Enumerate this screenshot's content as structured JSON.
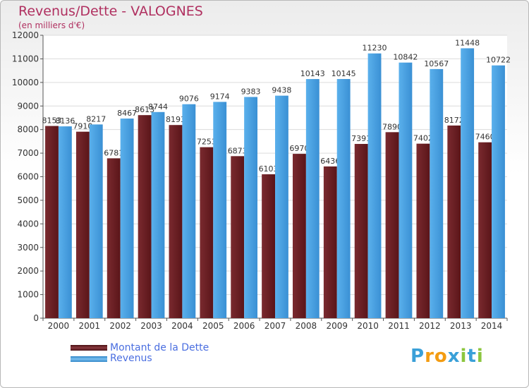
{
  "header": {
    "title": "Revenus/Dette - VALOGNES",
    "subtitle": "(en milliers d'€)"
  },
  "legend": {
    "dette_label": "Montant de la Dette",
    "revenus_label": "Revenus"
  },
  "logo": {
    "text": "Proxiti",
    "letters": [
      "P",
      "r",
      "o",
      "x",
      "i",
      "t",
      "i"
    ],
    "colors": [
      "#3aa0d8",
      "#f39c12",
      "#f39c12",
      "#3aa0d8",
      "#8cc63f",
      "#3aa0d8",
      "#8cc63f"
    ]
  },
  "colors": {
    "dette": "#6a1f24",
    "revenus": "#4aa0e0",
    "title": "#b03060",
    "legend_text": "#4a6ee0"
  },
  "chart_data": {
    "type": "bar",
    "title": "Revenus/Dette - VALOGNES",
    "subtitle": "(en milliers d'€)",
    "categories": [
      "2000",
      "2001",
      "2002",
      "2003",
      "2004",
      "2005",
      "2006",
      "2007",
      "2008",
      "2009",
      "2010",
      "2011",
      "2012",
      "2013",
      "2014"
    ],
    "series": [
      {
        "name": "Montant de la Dette",
        "values": [
          8153,
          7910,
          6781,
          8613,
          8193,
          7253,
          6873,
          6103,
          6970,
          6436,
          7391,
          7890,
          7402,
          8172,
          7460
        ],
        "labels": [
          "8153",
          "7910",
          "6781",
          "8613",
          "8193",
          "7253",
          "6873",
          "6103",
          "6970",
          "6436",
          "7391",
          "7890",
          "7402",
          "8172",
          "7460"
        ]
      },
      {
        "name": "Revenus",
        "values": [
          8136,
          8217,
          8467,
          8744,
          9076,
          9174,
          9383,
          9438,
          10143,
          10145,
          11230,
          10842,
          10567,
          11448,
          10722
        ],
        "labels": [
          "8136",
          "8217",
          "8467",
          "8744",
          "9076",
          "9174",
          "9383",
          "9438",
          "10143",
          "10145",
          "11230",
          "10842",
          "10567",
          "11448",
          "10722"
        ]
      }
    ],
    "ylim": [
      0,
      12000
    ],
    "yticks": [
      0,
      1000,
      2000,
      3000,
      4000,
      5000,
      6000,
      7000,
      8000,
      9000,
      10000,
      11000,
      12000
    ],
    "ytick_labels": [
      "0",
      "1000",
      "2000",
      "3000",
      "4000",
      "5000",
      "6000",
      "7000",
      "8000",
      "9000",
      "10000",
      "11000",
      "12000"
    ],
    "grid": true,
    "legend_position": "bottom-left"
  }
}
